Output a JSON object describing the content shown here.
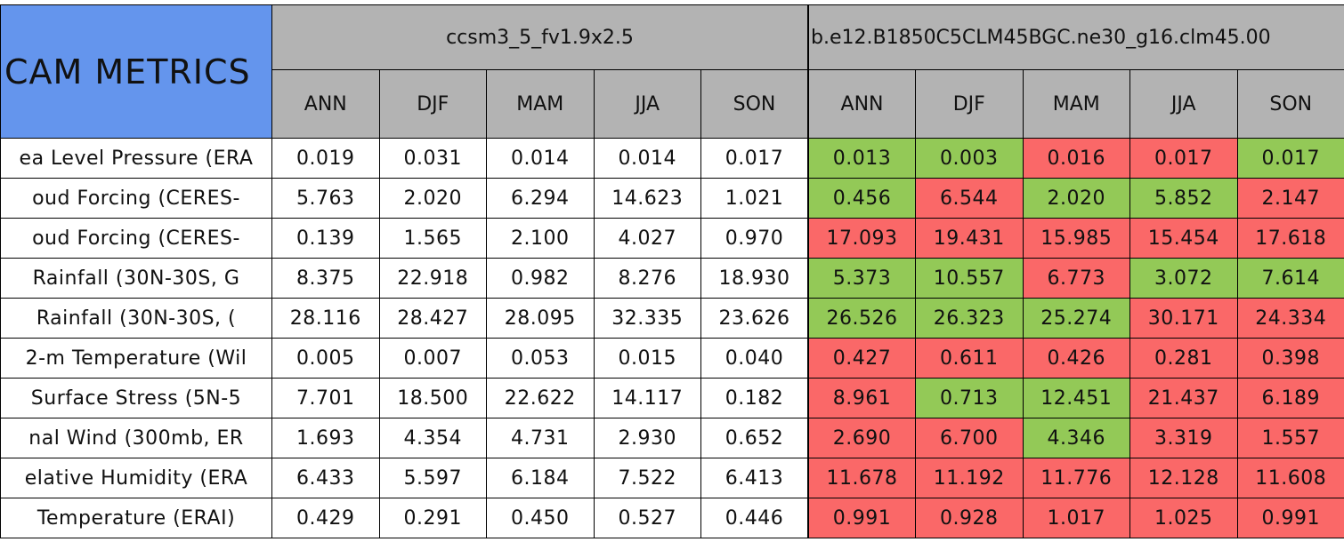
{
  "title": "CAM METRICS",
  "models": [
    {
      "name": "ccsm3_5_fv1.9x2.5",
      "seasons": [
        "ANN",
        "DJF",
        "MAM",
        "JJA",
        "SON"
      ]
    },
    {
      "name": "b.e12.B1850C5CLM45BGC.ne30_g16.clm45.00",
      "seasons": [
        "ANN",
        "DJF",
        "MAM",
        "JJA",
        "SON"
      ]
    }
  ],
  "rows": [
    {
      "label": "ea Level Pressure (ERA",
      "values": [
        "0.019",
        "0.031",
        "0.014",
        "0.014",
        "0.017",
        "0.013",
        "0.003",
        "0.016",
        "0.017",
        "0.017"
      ],
      "colors": [
        "#ffffff",
        "#ffffff",
        "#ffffff",
        "#ffffff",
        "#ffffff",
        "#93c957",
        "#93c957",
        "#fa6868",
        "#fa6868",
        "#93c957"
      ]
    },
    {
      "label": "oud Forcing (CERES-",
      "values": [
        "5.763",
        "2.020",
        "6.294",
        "14.623",
        "1.021",
        "0.456",
        "6.544",
        "2.020",
        "5.852",
        "2.147"
      ],
      "colors": [
        "#ffffff",
        "#ffffff",
        "#ffffff",
        "#ffffff",
        "#ffffff",
        "#93c957",
        "#fa6868",
        "#93c957",
        "#93c957",
        "#fa6868"
      ]
    },
    {
      "label": "oud Forcing (CERES-",
      "values": [
        "0.139",
        "1.565",
        "2.100",
        "4.027",
        "0.970",
        "17.093",
        "19.431",
        "15.985",
        "15.454",
        "17.618"
      ],
      "colors": [
        "#ffffff",
        "#ffffff",
        "#ffffff",
        "#ffffff",
        "#ffffff",
        "#fa6868",
        "#fa6868",
        "#fa6868",
        "#fa6868",
        "#fa6868"
      ]
    },
    {
      "label": "Rainfall (30N-30S, G",
      "values": [
        "8.375",
        "22.918",
        "0.982",
        "8.276",
        "18.930",
        "5.373",
        "10.557",
        "6.773",
        "3.072",
        "7.614"
      ],
      "colors": [
        "#ffffff",
        "#ffffff",
        "#ffffff",
        "#ffffff",
        "#ffffff",
        "#93c957",
        "#93c957",
        "#fa6868",
        "#93c957",
        "#93c957"
      ]
    },
    {
      "label": "Rainfall (30N-30S, (",
      "values": [
        "28.116",
        "28.427",
        "28.095",
        "32.335",
        "23.626",
        "26.526",
        "26.323",
        "25.274",
        "30.171",
        "24.334"
      ],
      "colors": [
        "#ffffff",
        "#ffffff",
        "#ffffff",
        "#ffffff",
        "#ffffff",
        "#93c957",
        "#93c957",
        "#93c957",
        "#fa6868",
        "#fa6868"
      ]
    },
    {
      "label": "2-m Temperature (Wil",
      "values": [
        "0.005",
        "0.007",
        "0.053",
        "0.015",
        "0.040",
        "0.427",
        "0.611",
        "0.426",
        "0.281",
        "0.398"
      ],
      "colors": [
        "#ffffff",
        "#ffffff",
        "#ffffff",
        "#ffffff",
        "#ffffff",
        "#fa6868",
        "#fa6868",
        "#fa6868",
        "#fa6868",
        "#fa6868"
      ]
    },
    {
      "label": "Surface Stress (5N-5",
      "values": [
        "7.701",
        "18.500",
        "22.622",
        "14.117",
        "0.182",
        "8.961",
        "0.713",
        "12.451",
        "21.437",
        "6.189"
      ],
      "colors": [
        "#ffffff",
        "#ffffff",
        "#ffffff",
        "#ffffff",
        "#ffffff",
        "#fa6868",
        "#93c957",
        "#93c957",
        "#fa6868",
        "#fa6868"
      ]
    },
    {
      "label": "nal Wind (300mb, ER",
      "values": [
        "1.693",
        "4.354",
        "4.731",
        "2.930",
        "0.652",
        "2.690",
        "6.700",
        "4.346",
        "3.319",
        "1.557"
      ],
      "colors": [
        "#ffffff",
        "#ffffff",
        "#ffffff",
        "#ffffff",
        "#ffffff",
        "#fa6868",
        "#fa6868",
        "#93c957",
        "#fa6868",
        "#fa6868"
      ]
    },
    {
      "label": "elative Humidity (ERA",
      "values": [
        "6.433",
        "5.597",
        "6.184",
        "7.522",
        "6.413",
        "11.678",
        "11.192",
        "11.776",
        "12.128",
        "11.608"
      ],
      "colors": [
        "#ffffff",
        "#ffffff",
        "#ffffff",
        "#ffffff",
        "#ffffff",
        "#fa6868",
        "#fa6868",
        "#fa6868",
        "#fa6868",
        "#fa6868"
      ]
    },
    {
      "label": "Temperature (ERAI)",
      "values": [
        "0.429",
        "0.291",
        "0.450",
        "0.527",
        "0.446",
        "0.991",
        "0.928",
        "1.017",
        "1.025",
        "0.991"
      ],
      "colors": [
        "#ffffff",
        "#ffffff",
        "#ffffff",
        "#ffffff",
        "#ffffff",
        "#fa6868",
        "#fa6868",
        "#fa6868",
        "#fa6868",
        "#fa6868"
      ]
    }
  ]
}
